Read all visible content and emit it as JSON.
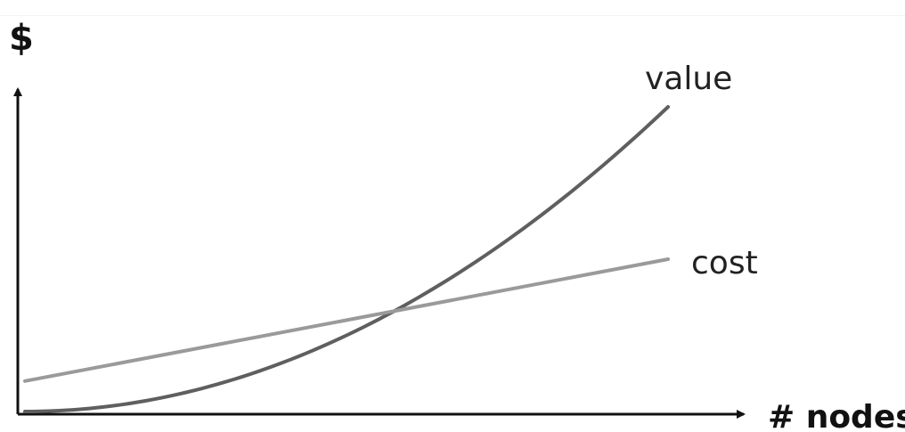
{
  "chart_data": {
    "type": "line",
    "xlabel": "# nodes",
    "ylabel": "$",
    "series": [
      {
        "name": "value",
        "x": [
          0,
          0.1,
          0.2,
          0.3,
          0.4,
          0.5,
          0.6,
          0.7,
          0.8,
          0.9,
          1.0
        ],
        "values": [
          0,
          0.01,
          0.04,
          0.09,
          0.16,
          0.25,
          0.36,
          0.49,
          0.64,
          0.81,
          1.0
        ],
        "color": "#5f5f5f"
      },
      {
        "name": "cost",
        "x": [
          0,
          1
        ],
        "values": [
          0.1,
          0.5
        ],
        "color": "#9a9a9a"
      }
    ],
    "grid": false,
    "legend": "none"
  }
}
